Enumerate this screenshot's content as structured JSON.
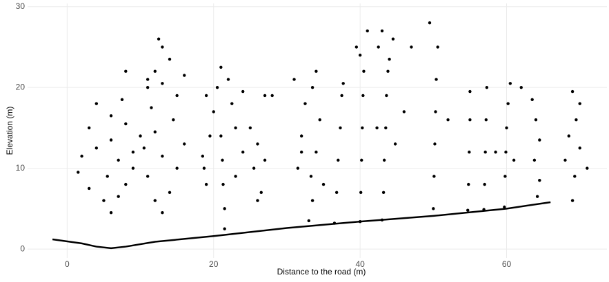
{
  "chart_data": {
    "type": "scatter",
    "xlabel": "Distance to the road (m)",
    "ylabel": "Elevation (m)",
    "xlim": [
      -5.4,
      73.7
    ],
    "ylim": [
      -1.1,
      30.4
    ],
    "xticks": [
      0,
      20,
      40,
      60
    ],
    "yticks": [
      0,
      10,
      20,
      30
    ],
    "grid": true,
    "series": [
      {
        "color": "#000000",
        "mode": "points",
        "x": [
          6,
          5,
          7,
          3,
          8,
          5.5,
          2,
          7,
          4,
          9,
          6,
          3,
          8,
          6,
          4,
          7.5,
          10,
          1.5,
          9,
          13,
          12,
          14,
          11,
          15,
          13,
          10.5,
          16,
          12,
          14.5,
          11.5,
          15,
          13,
          12,
          14,
          13,
          12.5,
          11,
          16,
          21.5,
          21.5,
          21.3,
          21.2,
          21,
          19,
          23,
          18.5,
          24,
          19.5,
          23,
          20,
          22.5,
          20.5,
          22,
          21,
          19,
          24,
          18.7,
          26,
          25.5,
          27,
          26,
          25,
          27,
          26.5,
          33,
          33.5,
          33.3,
          34,
          32,
          34.5,
          32.5,
          33.5,
          34,
          31.5,
          35,
          32,
          36.5,
          36.8,
          37,
          37.3,
          37.5,
          37.7,
          40,
          40.1,
          40.2,
          40.3,
          40.4,
          40.5,
          39.5,
          41,
          40,
          43,
          43.2,
          43.3,
          43.5,
          43.6,
          43.8,
          42.5,
          44.5,
          43,
          44,
          42.3,
          44.8,
          50,
          50.1,
          50.2,
          50.3,
          50.4,
          50.6,
          49.5,
          54.7,
          54.8,
          54.9,
          55,
          55,
          56.9,
          57,
          57.1,
          57.2,
          57.3,
          59.7,
          59.8,
          59.9,
          60,
          58.5,
          61,
          60.2,
          60.5,
          63.5,
          64,
          64.5,
          63.8,
          64.5,
          64.2,
          69,
          69.3,
          68,
          70,
          68.5,
          69.5,
          70,
          69,
          71,
          11,
          8,
          28,
          31,
          46,
          47,
          52,
          62
        ],
        "y": [
          4.5,
          6,
          6.5,
          7.5,
          8,
          9,
          11.5,
          11,
          12.5,
          12,
          13.5,
          15,
          15.5,
          16.5,
          18,
          18.5,
          14,
          9.5,
          10,
          4.5,
          6,
          7,
          9,
          10,
          11.5,
          12.5,
          13,
          14.5,
          16,
          17.5,
          19,
          20.5,
          22,
          23.5,
          25,
          26,
          21,
          21.5,
          2.5,
          5,
          8,
          11,
          14,
          8,
          9,
          11.5,
          12,
          14,
          15,
          17,
          18,
          20,
          21,
          22.5,
          19,
          19.5,
          10,
          6,
          10,
          11,
          13,
          15,
          19,
          7,
          3.5,
          6,
          9,
          12,
          14,
          16,
          18,
          20,
          22,
          10,
          8,
          12,
          3.2,
          7,
          11,
          15,
          19,
          20.5,
          3.4,
          7,
          11,
          15,
          19,
          22,
          25,
          27,
          24,
          3.6,
          7,
          11,
          15,
          19,
          22,
          25,
          26,
          27,
          23.5,
          15,
          13,
          5,
          9,
          13,
          17,
          21,
          25,
          28,
          4.8,
          8,
          12,
          16,
          19.5,
          4.9,
          8,
          12,
          16,
          20,
          5.2,
          9,
          12,
          15,
          12,
          11,
          18,
          20.5,
          18.5,
          16,
          13.5,
          11,
          8.5,
          6.5,
          6,
          9,
          11,
          12.5,
          14,
          16,
          18,
          19.5,
          10,
          20,
          22,
          19,
          21,
          17,
          25,
          16,
          20
        ]
      },
      {
        "color": "#000000",
        "mode": "line",
        "x": [
          -2,
          2,
          4,
          6,
          8,
          12,
          20,
          30,
          40,
          50,
          60,
          66
        ],
        "y": [
          1.2,
          0.7,
          0.3,
          0.1,
          0.3,
          0.9,
          1.6,
          2.6,
          3.4,
          4.1,
          5.0,
          5.8
        ]
      }
    ]
  }
}
